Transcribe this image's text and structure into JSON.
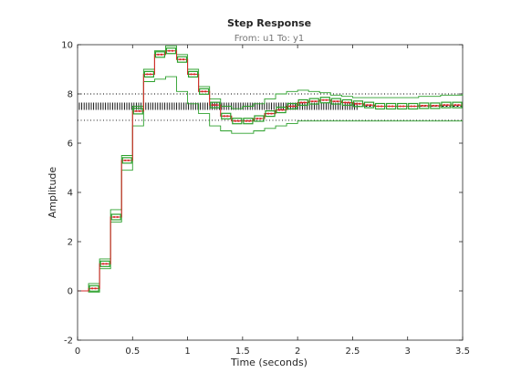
{
  "chart_data": {
    "type": "line",
    "title": "Step Response",
    "subtitle": "From: u1  To: y1",
    "xlabel": "Time (seconds)",
    "ylabel": "Amplitude",
    "xlim": [
      0,
      3.5
    ],
    "ylim": [
      -2,
      10
    ],
    "xticks": [
      "0",
      "0.5",
      "1",
      "1.5",
      "2",
      "2.5",
      "3",
      "3.5"
    ],
    "yticks": [
      "-2",
      "0",
      "2",
      "4",
      "6",
      "8",
      "10"
    ],
    "grid": false,
    "sample_time": 0.1,
    "steady_state": 7.5,
    "confidence_bounds": [
      6.93,
      8.0
    ],
    "series": [
      {
        "kind": "response",
        "color": "#d62728",
        "t": [
          0,
          0.1,
          0.2,
          0.3,
          0.4,
          0.5,
          0.6,
          0.7,
          0.8,
          0.9,
          1.0,
          1.1,
          1.2,
          1.3,
          1.4,
          1.5,
          1.6,
          1.7,
          1.8,
          1.9,
          2.0,
          2.1,
          2.2,
          2.3,
          2.4,
          2.5,
          2.6,
          2.7,
          2.8,
          2.9,
          3.0,
          3.1,
          3.2,
          3.3,
          3.4,
          3.5
        ],
        "y": [
          0,
          0.1,
          1.1,
          3.0,
          5.3,
          7.3,
          8.8,
          9.6,
          9.75,
          9.4,
          8.8,
          8.1,
          7.55,
          7.1,
          6.9,
          6.9,
          7.0,
          7.2,
          7.35,
          7.5,
          7.65,
          7.7,
          7.75,
          7.7,
          7.65,
          7.6,
          7.55,
          7.5,
          7.5,
          7.5,
          7.5,
          7.52,
          7.52,
          7.55,
          7.55,
          7.55
        ]
      },
      {
        "kind": "upper-envelope",
        "color": "#2ca02c",
        "t": [
          0,
          0.1,
          0.2,
          0.3,
          0.4,
          0.5,
          0.6,
          0.7,
          0.8,
          0.9,
          1.0,
          1.1,
          1.2,
          1.3,
          1.4,
          1.5,
          1.6,
          1.7,
          1.8,
          1.9,
          2.0,
          2.1,
          2.2,
          2.3,
          2.4,
          2.5,
          2.6,
          2.7,
          2.8,
          2.9,
          3.0,
          3.1,
          3.2,
          3.3,
          3.4,
          3.5
        ],
        "y": [
          0,
          0.3,
          1.3,
          3.3,
          5.5,
          7.5,
          9.0,
          9.75,
          9.95,
          9.6,
          9.0,
          8.3,
          7.8,
          7.5,
          7.4,
          7.5,
          7.6,
          7.8,
          8.0,
          8.1,
          8.15,
          8.1,
          8.05,
          7.95,
          7.9,
          7.85,
          7.85,
          7.85,
          7.85,
          7.85,
          7.85,
          7.9,
          7.9,
          7.95,
          7.95,
          8.0
        ]
      },
      {
        "kind": "lower-envelope",
        "color": "#2ca02c",
        "t": [
          0,
          0.1,
          0.2,
          0.3,
          0.4,
          0.5,
          0.6,
          0.7,
          0.8,
          0.9,
          1.0,
          1.1,
          1.2,
          1.3,
          1.4,
          1.5,
          1.6,
          1.7,
          1.8,
          1.9,
          2.0,
          2.1,
          2.2,
          2.3,
          2.4,
          2.5,
          2.6,
          2.7,
          2.8,
          2.9,
          3.0,
          3.1,
          3.2,
          3.3,
          3.4,
          3.5
        ],
        "y": [
          0,
          -0.05,
          0.9,
          2.8,
          4.9,
          6.7,
          8.5,
          8.6,
          8.7,
          8.1,
          7.6,
          7.2,
          6.7,
          6.5,
          6.4,
          6.4,
          6.5,
          6.6,
          6.7,
          6.8,
          6.9,
          6.9,
          6.9,
          6.9,
          6.9,
          6.9,
          6.9,
          6.9,
          6.9,
          6.9,
          6.9,
          6.9,
          6.9,
          6.9,
          6.9,
          6.9
        ]
      }
    ]
  }
}
